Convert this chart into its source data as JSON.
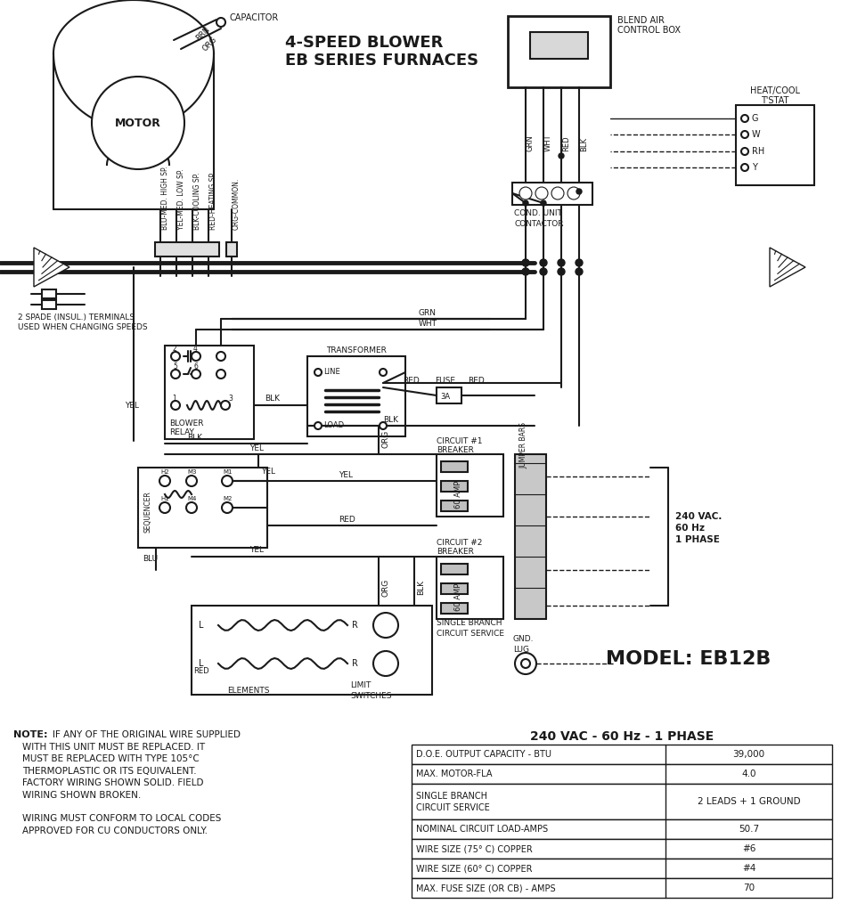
{
  "title": "4-SPEED BLOWER\nEB SERIES FURNACES",
  "model": "MODEL: EB12B",
  "table_title": "240 VAC - 60 Hz - 1 PHASE",
  "table_rows": [
    [
      "D.O.E. OUTPUT CAPACITY - BTU",
      "39,000"
    ],
    [
      "MAX. MOTOR-FLA",
      "4.0"
    ],
    [
      "SINGLE BRANCH\nCIRCUIT SERVICE",
      "2 LEADS + 1 GROUND"
    ],
    [
      "NOMINAL CIRCUIT LOAD-AMPS",
      "50.7"
    ],
    [
      "WIRE SIZE (75° C) COPPER",
      "#6"
    ],
    [
      "WIRE SIZE (60° C) COPPER",
      "#4"
    ],
    [
      "MAX. FUSE SIZE (OR CB) - AMPS",
      "70"
    ]
  ],
  "note_bold": "NOTE:",
  "note_lines": [
    "IF ANY OF THE ORIGINAL WIRE SUPPLIED",
    "WITH THIS UNIT MUST BE REPLACED. IT",
    "MUST BE REPLACED WITH TYPE 105°C",
    "THERMOPLASTIC OR ITS EQUIVALENT.",
    "FACTORY WIRING SHOWN SOLID. FIELD",
    "WIRING SHOWN BROKEN.",
    "",
    "WIRING MUST CONFORM TO LOCAL CODES",
    "APPROVED FOR CU CONDUCTORS ONLY."
  ],
  "bg_color": "#ffffff",
  "line_color": "#1a1a1a",
  "wire_labels": [
    "BLU-MED. HIGH SP.",
    "YEL-MED. LOW SP.",
    "BLK-COOLING SP.",
    "RED-HEATING SP.",
    "ORG-COMMON."
  ],
  "tstat_labels": [
    "G",
    "W",
    "RH",
    "Y"
  ],
  "blend_wire_labels": [
    "GRN",
    "WHT",
    "RED",
    "BLK"
  ]
}
